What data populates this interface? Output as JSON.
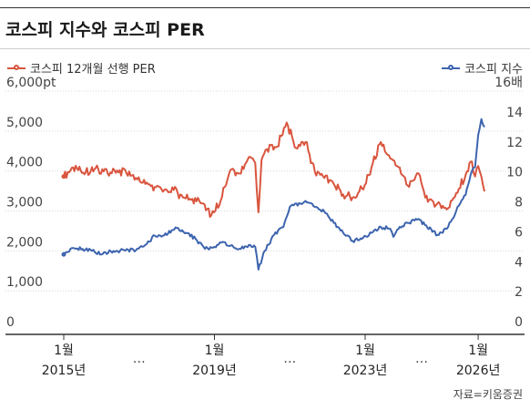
{
  "title": "코스피 지수와 코스피 PER",
  "source": "자료=키움증권",
  "colors": {
    "per": "#D9553E",
    "kospi": "#3D64AE",
    "grid": "#d8d8d8",
    "axis": "#333333"
  },
  "chart_data": {
    "type": "line",
    "title": "코스피 지수와 코스피 PER",
    "legend_placement": "top",
    "grid": true,
    "x_labels": [
      {
        "month": "1월",
        "year": "2015년",
        "date": "2015-01"
      },
      {
        "month": "1월",
        "year": "2019년",
        "date": "2019-01"
      },
      {
        "month": "1월",
        "year": "2023년",
        "date": "2023-01"
      },
      {
        "month": "1월",
        "year": "2026년",
        "date": "2026-01"
      }
    ],
    "x_ellipsis": [
      "…",
      "…",
      "…"
    ],
    "xlim": [
      "2015-01",
      "2026-03"
    ],
    "left_axis": {
      "series": "코스피 지수",
      "ylim": [
        0,
        6000
      ],
      "ticks": [
        {
          "value": 0,
          "label": "0"
        },
        {
          "value": 1000,
          "label": "1,000"
        },
        {
          "value": 2000,
          "label": "2,000"
        },
        {
          "value": 3000,
          "label": "3,000"
        },
        {
          "value": 4000,
          "label": "4,000"
        },
        {
          "value": 5000,
          "label": "5,000"
        },
        {
          "value": 6000,
          "label": "6,000pt"
        }
      ]
    },
    "right_axis": {
      "series": "코스피 12개월 선행 PER",
      "ylim": [
        0,
        16
      ],
      "ticks": [
        {
          "value": 0,
          "label": "0"
        },
        {
          "value": 2,
          "label": "2"
        },
        {
          "value": 4,
          "label": "4"
        },
        {
          "value": 6,
          "label": "6"
        },
        {
          "value": 8,
          "label": "8"
        },
        {
          "value": 10,
          "label": "10"
        },
        {
          "value": 12,
          "label": "12"
        },
        {
          "value": 14,
          "label": "14"
        },
        {
          "value": 16,
          "label": "16배"
        }
      ]
    },
    "series": [
      {
        "name": "코스피 12개월 선행 PER",
        "axis": "right",
        "color": "#D9553E",
        "points": [
          [
            "2015-01",
            10.3
          ],
          [
            "2015-04",
            10.9
          ],
          [
            "2015-08",
            10.6
          ],
          [
            "2015-12",
            10.8
          ],
          [
            "2016-03",
            10.5
          ],
          [
            "2016-06",
            10.7
          ],
          [
            "2016-09",
            10.5
          ],
          [
            "2016-12",
            10.2
          ],
          [
            "2017-03",
            9.8
          ],
          [
            "2017-06",
            9.6
          ],
          [
            "2017-09",
            9.4
          ],
          [
            "2017-12",
            9.4
          ],
          [
            "2018-03",
            8.9
          ],
          [
            "2018-06",
            8.8
          ],
          [
            "2018-09",
            8.5
          ],
          [
            "2018-12",
            7.7
          ],
          [
            "2019-03",
            8.7
          ],
          [
            "2019-06",
            10.7
          ],
          [
            "2019-09",
            10.5
          ],
          [
            "2019-12",
            11.6
          ],
          [
            "2020-02",
            11.2
          ],
          [
            "2020-03",
            7.9
          ],
          [
            "2020-04",
            11.4
          ],
          [
            "2020-07",
            12.4
          ],
          [
            "2020-09",
            12.3
          ],
          [
            "2020-12",
            13.9
          ],
          [
            "2021-03",
            12.2
          ],
          [
            "2021-06",
            12.6
          ],
          [
            "2021-09",
            10.6
          ],
          [
            "2021-12",
            10.2
          ],
          [
            "2022-03",
            9.8
          ],
          [
            "2022-06",
            9.1
          ],
          [
            "2022-09",
            8.9
          ],
          [
            "2022-12",
            9.5
          ],
          [
            "2023-03",
            10.9
          ],
          [
            "2023-06",
            12.6
          ],
          [
            "2023-09",
            11.5
          ],
          [
            "2023-12",
            10.9
          ],
          [
            "2024-03",
            9.6
          ],
          [
            "2024-06",
            10.5
          ],
          [
            "2024-09",
            8.6
          ],
          [
            "2024-12",
            8.5
          ],
          [
            "2025-03",
            8.1
          ],
          [
            "2025-06",
            9.2
          ],
          [
            "2025-09",
            10.4
          ],
          [
            "2025-11",
            11.3
          ],
          [
            "2025-12",
            10.3
          ],
          [
            "2026-01",
            11.0
          ],
          [
            "2026-02",
            10.3
          ],
          [
            "2026-03",
            9.3
          ]
        ]
      },
      {
        "name": "코스피 지수",
        "axis": "left",
        "color": "#3D64AE",
        "points": [
          [
            "2015-01",
            1910
          ],
          [
            "2015-04",
            2070
          ],
          [
            "2015-07",
            2050
          ],
          [
            "2015-10",
            2000
          ],
          [
            "2016-01",
            1910
          ],
          [
            "2016-04",
            1990
          ],
          [
            "2016-07",
            2010
          ],
          [
            "2016-12",
            2020
          ],
          [
            "2017-03",
            2150
          ],
          [
            "2017-06",
            2380
          ],
          [
            "2017-09",
            2390
          ],
          [
            "2018-01",
            2570
          ],
          [
            "2018-04",
            2450
          ],
          [
            "2018-07",
            2300
          ],
          [
            "2018-10",
            2050
          ],
          [
            "2019-01",
            2100
          ],
          [
            "2019-04",
            2220
          ],
          [
            "2019-07",
            2100
          ],
          [
            "2019-09",
            2050
          ],
          [
            "2019-12",
            2150
          ],
          [
            "2020-02",
            2100
          ],
          [
            "2020-03",
            1530
          ],
          [
            "2020-05",
            2000
          ],
          [
            "2020-08",
            2400
          ],
          [
            "2020-11",
            2600
          ],
          [
            "2021-01",
            3100
          ],
          [
            "2021-06",
            3250
          ],
          [
            "2021-09",
            3100
          ],
          [
            "2021-12",
            2980
          ],
          [
            "2022-03",
            2700
          ],
          [
            "2022-06",
            2450
          ],
          [
            "2022-09",
            2250
          ],
          [
            "2022-12",
            2300
          ],
          [
            "2023-03",
            2450
          ],
          [
            "2023-06",
            2600
          ],
          [
            "2023-09",
            2550
          ],
          [
            "2023-10",
            2350
          ],
          [
            "2023-12",
            2600
          ],
          [
            "2024-03",
            2700
          ],
          [
            "2024-06",
            2800
          ],
          [
            "2024-08",
            2650
          ],
          [
            "2024-12",
            2400
          ],
          [
            "2025-03",
            2550
          ],
          [
            "2025-06",
            3000
          ],
          [
            "2025-09",
            3400
          ],
          [
            "2025-11",
            4000
          ],
          [
            "2025-12",
            4100
          ],
          [
            "2026-01",
            4900
          ],
          [
            "2026-02",
            5300
          ],
          [
            "2026-03",
            5100
          ]
        ]
      }
    ]
  }
}
